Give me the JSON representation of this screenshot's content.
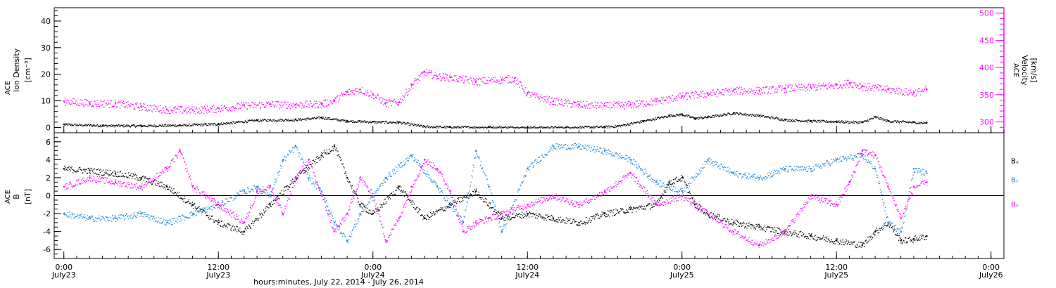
{
  "colors": {
    "black": "#000000",
    "magenta": "#ff00ff",
    "blue": "#1f8bdc",
    "white": "#ffffff"
  },
  "chart_data": [
    {
      "type": "scatter",
      "panel": "ion-density-velocity",
      "ylabel_left": [
        "ACE",
        "Ion Density",
        "[cm⁻³]"
      ],
      "ylabel_right": [
        "ACE",
        "Velocity",
        "[km/s]"
      ],
      "ylim_left": [
        -2,
        45
      ],
      "ylim_right": [
        280,
        510
      ],
      "yticks_left": [
        0,
        10,
        20,
        30,
        40
      ],
      "yticks_right": [
        300,
        350,
        400,
        450,
        500
      ],
      "series": [
        {
          "axis": "left",
          "color": "black",
          "values": [
            [
              0,
              1.2
            ],
            [
              6,
              0.8
            ],
            [
              12,
              0.7
            ],
            [
              18,
              0.9
            ],
            [
              24,
              1.4
            ],
            [
              30,
              2.8
            ],
            [
              36,
              3.0
            ],
            [
              40,
              3.8
            ],
            [
              44,
              2.5
            ],
            [
              48,
              2.2
            ],
            [
              52,
              2.0
            ],
            [
              56,
              0.4
            ],
            [
              60,
              0.2
            ],
            [
              66,
              0.2
            ],
            [
              72,
              0.1
            ],
            [
              78,
              0.1
            ],
            [
              84,
              0.3
            ],
            [
              86,
              0.6
            ],
            [
              90,
              2.5
            ],
            [
              94,
              4.5
            ],
            [
              96,
              5.0
            ],
            [
              98,
              3.5
            ],
            [
              100,
              4.0
            ],
            [
              104,
              5.5
            ],
            [
              108,
              4.5
            ],
            [
              112,
              3.0
            ],
            [
              116,
              2.5
            ],
            [
              120,
              2.3
            ],
            [
              124,
              2.0
            ],
            [
              126,
              4.0
            ],
            [
              128,
              2.5
            ],
            [
              132,
              2.0
            ],
            [
              134,
              1.8
            ]
          ]
        },
        {
          "axis": "right",
          "color": "magenta",
          "values": [
            [
              0,
              338
            ],
            [
              4,
              335
            ],
            [
              8,
              334
            ],
            [
              12,
              328
            ],
            [
              16,
              323
            ],
            [
              20,
              322
            ],
            [
              24,
              325
            ],
            [
              28,
              330
            ],
            [
              32,
              333
            ],
            [
              36,
              332
            ],
            [
              40,
              333
            ],
            [
              42,
              340
            ],
            [
              44,
              355
            ],
            [
              46,
              360
            ],
            [
              48,
              350
            ],
            [
              50,
              335
            ],
            [
              52,
              336
            ],
            [
              54,
              368
            ],
            [
              56,
              392
            ],
            [
              58,
              384
            ],
            [
              60,
              382
            ],
            [
              64,
              375
            ],
            [
              68,
              378
            ],
            [
              70,
              380
            ],
            [
              72,
              352
            ],
            [
              76,
              338
            ],
            [
              80,
              332
            ],
            [
              84,
              330
            ],
            [
              88,
              332
            ],
            [
              92,
              338
            ],
            [
              96,
              348
            ],
            [
              100,
              352
            ],
            [
              104,
              358
            ],
            [
              108,
              358
            ],
            [
              112,
              362
            ],
            [
              116,
              364
            ],
            [
              120,
              368
            ],
            [
              122,
              372
            ],
            [
              124,
              366
            ],
            [
              128,
              360
            ],
            [
              132,
              354
            ],
            [
              134,
              360
            ]
          ]
        }
      ]
    },
    {
      "type": "scatter",
      "panel": "magnetic-field",
      "ylabel_left": [
        "ACE",
        "B",
        "[nT]"
      ],
      "ylim": [
        -7,
        7
      ],
      "yticks": [
        -6,
        -4,
        -2,
        0,
        2,
        4,
        6
      ],
      "legend": [
        "Bₓ",
        "Bᵧ",
        "Bₔ"
      ],
      "legend_colors": [
        "black",
        "blue",
        "magenta"
      ],
      "series": [
        {
          "color": "black",
          "values": [
            [
              0,
              3.0
            ],
            [
              4,
              2.8
            ],
            [
              8,
              2.5
            ],
            [
              12,
              2.0
            ],
            [
              16,
              1.0
            ],
            [
              20,
              -1.0
            ],
            [
              24,
              -3.0
            ],
            [
              28,
              -4.0
            ],
            [
              32,
              -1.0
            ],
            [
              36,
              2.0
            ],
            [
              40,
              4.5
            ],
            [
              42,
              5.5
            ],
            [
              44,
              2.0
            ],
            [
              46,
              -1.0
            ],
            [
              48,
              -2.0
            ],
            [
              52,
              1.0
            ],
            [
              56,
              -2.5
            ],
            [
              60,
              -1.0
            ],
            [
              64,
              0.5
            ],
            [
              68,
              -2.5
            ],
            [
              72,
              -2.0
            ],
            [
              76,
              -2.5
            ],
            [
              80,
              -3.0
            ],
            [
              84,
              -2.0
            ],
            [
              88,
              -1.5
            ],
            [
              92,
              -1.0
            ],
            [
              94,
              1.5
            ],
            [
              96,
              2.0
            ],
            [
              98,
              -1.0
            ],
            [
              100,
              -2.0
            ],
            [
              104,
              -3.0
            ],
            [
              108,
              -3.5
            ],
            [
              112,
              -4.0
            ],
            [
              116,
              -4.5
            ],
            [
              120,
              -5.0
            ],
            [
              124,
              -5.5
            ],
            [
              126,
              -4.0
            ],
            [
              128,
              -3.0
            ],
            [
              130,
              -5.0
            ],
            [
              132,
              -4.8
            ],
            [
              134,
              -4.5
            ]
          ]
        },
        {
          "color": "blue",
          "values": [
            [
              0,
              -2.0
            ],
            [
              4,
              -2.5
            ],
            [
              8,
              -2.5
            ],
            [
              12,
              -2.0
            ],
            [
              16,
              -3.0
            ],
            [
              20,
              -2.0
            ],
            [
              24,
              -1.0
            ],
            [
              28,
              0.5
            ],
            [
              30,
              1.0
            ],
            [
              32,
              0.0
            ],
            [
              34,
              4.0
            ],
            [
              36,
              5.5
            ],
            [
              38,
              2.0
            ],
            [
              40,
              0.5
            ],
            [
              42,
              -3.0
            ],
            [
              44,
              -5.0
            ],
            [
              46,
              -2.0
            ],
            [
              50,
              2.0
            ],
            [
              54,
              4.5
            ],
            [
              58,
              1.0
            ],
            [
              62,
              -3.0
            ],
            [
              64,
              5.0
            ],
            [
              66,
              1.0
            ],
            [
              68,
              -4.0
            ],
            [
              72,
              3.0
            ],
            [
              76,
              5.5
            ],
            [
              80,
              5.5
            ],
            [
              84,
              5.0
            ],
            [
              88,
              4.0
            ],
            [
              92,
              1.5
            ],
            [
              96,
              0.5
            ],
            [
              100,
              4.0
            ],
            [
              104,
              2.5
            ],
            [
              108,
              2.0
            ],
            [
              112,
              3.0
            ],
            [
              116,
              3.0
            ],
            [
              120,
              4.0
            ],
            [
              124,
              4.5
            ],
            [
              126,
              3.0
            ],
            [
              128,
              -3.0
            ],
            [
              130,
              -4.0
            ],
            [
              132,
              3.0
            ],
            [
              134,
              2.5
            ]
          ]
        },
        {
          "color": "magenta",
          "values": [
            [
              0,
              1.0
            ],
            [
              4,
              2.0
            ],
            [
              8,
              1.5
            ],
            [
              12,
              1.0
            ],
            [
              16,
              3.0
            ],
            [
              18,
              5.0
            ],
            [
              20,
              1.0
            ],
            [
              24,
              -1.0
            ],
            [
              28,
              -3.0
            ],
            [
              30,
              0.5
            ],
            [
              32,
              1.0
            ],
            [
              34,
              -2.0
            ],
            [
              36,
              2.0
            ],
            [
              38,
              4.0
            ],
            [
              40,
              0.0
            ],
            [
              42,
              -4.0
            ],
            [
              44,
              -2.0
            ],
            [
              46,
              2.0
            ],
            [
              48,
              0.0
            ],
            [
              50,
              -5.0
            ],
            [
              52,
              -2.5
            ],
            [
              54,
              1.0
            ],
            [
              56,
              4.0
            ],
            [
              58,
              3.0
            ],
            [
              60,
              0.5
            ],
            [
              62,
              -4.0
            ],
            [
              64,
              -3.0
            ],
            [
              66,
              -2.5
            ],
            [
              68,
              -2.0
            ],
            [
              72,
              -1.0
            ],
            [
              76,
              0.0
            ],
            [
              80,
              -1.0
            ],
            [
              84,
              0.5
            ],
            [
              88,
              2.5
            ],
            [
              92,
              -1.0
            ],
            [
              96,
              0.0
            ],
            [
              100,
              -2.0
            ],
            [
              104,
              -4.0
            ],
            [
              108,
              -5.5
            ],
            [
              112,
              -4.0
            ],
            [
              116,
              0.0
            ],
            [
              120,
              -1.0
            ],
            [
              122,
              1.5
            ],
            [
              124,
              5.0
            ],
            [
              126,
              4.5
            ],
            [
              128,
              1.0
            ],
            [
              130,
              -2.5
            ],
            [
              132,
              1.0
            ],
            [
              134,
              1.5
            ]
          ]
        }
      ]
    }
  ],
  "xaxis": {
    "xlim": [
      -1.5,
      146
    ],
    "ticks": [
      {
        "x": 0,
        "time": "0:00",
        "date": "July23"
      },
      {
        "x": 24,
        "time": "12:00",
        "date": "July23"
      },
      {
        "x": 48,
        "time": "0:00",
        "date": "July24"
      },
      {
        "x": 72,
        "time": "12:00",
        "date": "July24"
      },
      {
        "x": 96,
        "time": "0:00",
        "date": "July25"
      },
      {
        "x": 120,
        "time": "12:00",
        "date": "July25"
      },
      {
        "x": 144,
        "time": "0:00",
        "date": "July26"
      }
    ],
    "label": "hours:minutes, July 22, 2014 - July 26, 2014"
  }
}
